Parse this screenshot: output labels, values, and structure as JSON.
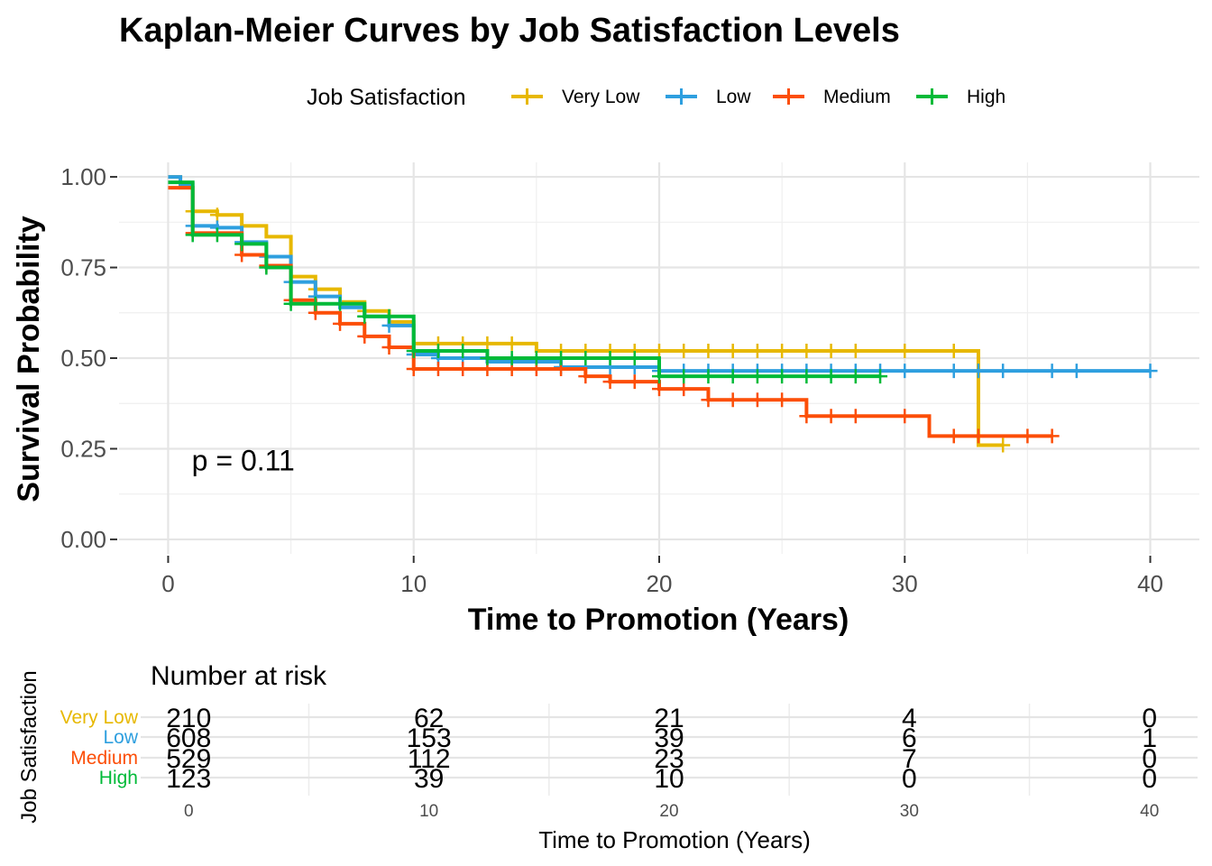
{
  "chart_data": {
    "type": "line",
    "subtype": "kaplan-meier step curves with censor marks",
    "title": "Kaplan-Meier Curves by Job Satisfaction Levels",
    "xlabel": "Time to Promotion (Years)",
    "ylabel": "Survival Probability",
    "xlim": [
      -2,
      42
    ],
    "ylim": [
      -0.04,
      1.04
    ],
    "x_ticks": [
      0,
      10,
      20,
      30,
      40
    ],
    "y_ticks": [
      0.0,
      0.25,
      0.5,
      0.75,
      1.0
    ],
    "y_tick_labels": [
      "0.00",
      "0.25",
      "0.50",
      "0.75",
      "1.00"
    ],
    "grid": true,
    "legend_title": "Job Satisfaction",
    "legend_position": "top",
    "annotation": "p = 0.11",
    "annotation_at": {
      "x": 1,
      "y": 0.19
    },
    "series": [
      {
        "name": "Very Low",
        "color": "#E7B800",
        "steps": [
          [
            0,
            1.0
          ],
          [
            0.5,
            0.97
          ],
          [
            1,
            0.905
          ],
          [
            2,
            0.895
          ],
          [
            3,
            0.865
          ],
          [
            4,
            0.835
          ],
          [
            5,
            0.725
          ],
          [
            6,
            0.69
          ],
          [
            7,
            0.655
          ],
          [
            8,
            0.63
          ],
          [
            9,
            0.6
          ],
          [
            10,
            0.54
          ],
          [
            15,
            0.52
          ],
          [
            33,
            0.26
          ],
          [
            34,
            0.26
          ]
        ],
        "censor_times": [
          1,
          2,
          6,
          8,
          11,
          12,
          13,
          14,
          16,
          17,
          18,
          19,
          20,
          21,
          22,
          23,
          24,
          25,
          26,
          27,
          28,
          30,
          32,
          34
        ]
      },
      {
        "name": "Low",
        "color": "#2E9FDF",
        "steps": [
          [
            0,
            1.0
          ],
          [
            0.5,
            0.98
          ],
          [
            1,
            0.865
          ],
          [
            2,
            0.86
          ],
          [
            3,
            0.82
          ],
          [
            4,
            0.78
          ],
          [
            5,
            0.71
          ],
          [
            6,
            0.67
          ],
          [
            7,
            0.64
          ],
          [
            8,
            0.615
          ],
          [
            9,
            0.59
          ],
          [
            10,
            0.51
          ],
          [
            11,
            0.5
          ],
          [
            13,
            0.49
          ],
          [
            16,
            0.475
          ],
          [
            20,
            0.465
          ],
          [
            40,
            0.465
          ]
        ],
        "censor_times": [
          1,
          2,
          3,
          4,
          5,
          6,
          8,
          9,
          10,
          11,
          12,
          14,
          15,
          16,
          17,
          18,
          19,
          20,
          21,
          22,
          23,
          24,
          25,
          26,
          27,
          28,
          29,
          30,
          32,
          33,
          34,
          36,
          37,
          40
        ]
      },
      {
        "name": "Medium",
        "color": "#FC4E07",
        "steps": [
          [
            0,
            0.97
          ],
          [
            1,
            0.845
          ],
          [
            3,
            0.785
          ],
          [
            4,
            0.755
          ],
          [
            5,
            0.66
          ],
          [
            6,
            0.625
          ],
          [
            7,
            0.595
          ],
          [
            8,
            0.56
          ],
          [
            9,
            0.53
          ],
          [
            10,
            0.47
          ],
          [
            17,
            0.45
          ],
          [
            18,
            0.435
          ],
          [
            20,
            0.415
          ],
          [
            22,
            0.385
          ],
          [
            26,
            0.34
          ],
          [
            31,
            0.285
          ],
          [
            36,
            0.285
          ]
        ],
        "censor_times": [
          1,
          3,
          4,
          5,
          6,
          7,
          8,
          9,
          10,
          11,
          12,
          13,
          14,
          15,
          16,
          17,
          18,
          19,
          20,
          21,
          22,
          23,
          24,
          25,
          26,
          27,
          28,
          30,
          32,
          33,
          35,
          36
        ]
      },
      {
        "name": "High",
        "color": "#00BA38",
        "steps": [
          [
            0,
            0.985
          ],
          [
            1,
            0.84
          ],
          [
            3,
            0.815
          ],
          [
            4,
            0.75
          ],
          [
            5,
            0.65
          ],
          [
            8,
            0.615
          ],
          [
            10,
            0.52
          ],
          [
            13,
            0.5
          ],
          [
            20,
            0.45
          ],
          [
            29,
            0.45
          ]
        ],
        "censor_times": [
          1,
          2,
          3,
          4,
          5,
          6,
          7,
          8,
          9,
          10,
          11,
          12,
          13,
          14,
          15,
          16,
          17,
          18,
          19,
          20,
          21,
          22,
          23,
          24,
          25,
          26,
          27,
          28,
          29
        ]
      }
    ],
    "risk_table": {
      "title": "Number at risk",
      "ylabel": "Job Satisfaction",
      "xlabel": "Time to Promotion (Years)",
      "times": [
        0,
        10,
        20,
        30,
        40
      ],
      "rows": [
        {
          "name": "Very Low",
          "color": "#E7B800",
          "counts": [
            "210",
            "62",
            "21",
            "4",
            "0"
          ]
        },
        {
          "name": "Low",
          "color": "#2E9FDF",
          "counts": [
            "608",
            "153",
            "39",
            "6",
            "1"
          ]
        },
        {
          "name": "Medium",
          "color": "#FC4E07",
          "counts": [
            "529",
            "112",
            "23",
            "7",
            "0"
          ]
        },
        {
          "name": "High",
          "color": "#00BA38",
          "counts": [
            "123",
            "39",
            "10",
            "0",
            "0"
          ]
        }
      ]
    }
  }
}
